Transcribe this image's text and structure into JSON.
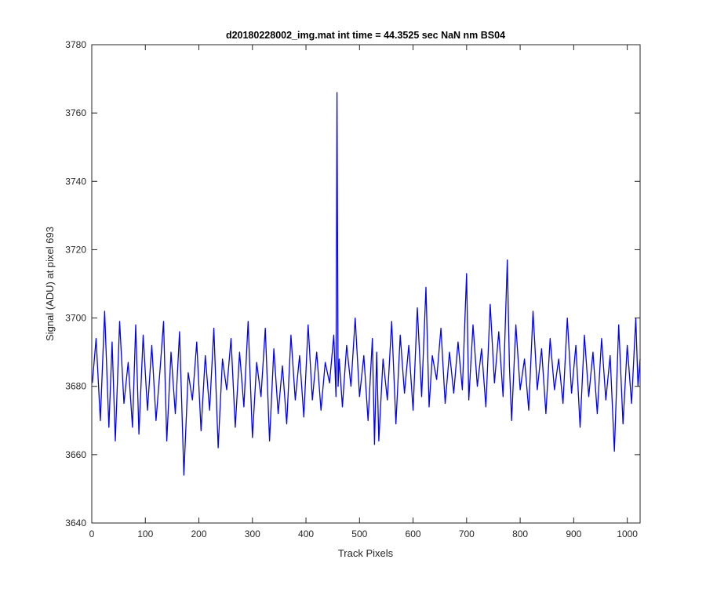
{
  "chart_data": {
    "type": "line",
    "title": "d20180228002_img.mat int time = 44.3525 sec  NaN nm BS04",
    "xlabel": "Track Pixels",
    "ylabel": "Signal (ADU) at pixel 693",
    "xlim": [
      0,
      1024
    ],
    "ylim": [
      3640,
      3780
    ],
    "xticks": [
      0,
      100,
      200,
      300,
      400,
      500,
      600,
      700,
      800,
      900,
      1000
    ],
    "yticks": [
      3640,
      3660,
      3680,
      3700,
      3720,
      3740,
      3760,
      3780
    ],
    "grid": false,
    "line_color": "#0000ff",
    "series": [
      {
        "x": [
          1,
          8,
          16,
          24,
          32,
          38,
          44,
          52,
          60,
          68,
          76,
          82,
          88,
          96,
          104,
          112,
          120,
          128,
          134,
          140,
          148,
          156,
          164,
          172,
          180,
          188,
          196,
          204,
          212,
          220,
          228,
          236,
          244,
          252,
          260,
          268,
          276,
          284,
          292,
          300,
          308,
          316,
          324,
          332,
          340,
          348,
          356,
          364,
          372,
          380,
          388,
          396,
          404,
          412,
          420,
          428,
          436,
          444,
          452,
          456,
          458,
          460,
          462,
          468,
          476,
          484,
          492,
          500,
          508,
          516,
          524,
          528,
          532,
          536,
          544,
          552,
          560,
          568,
          576,
          584,
          592,
          600,
          608,
          616,
          624,
          630,
          636,
          644,
          652,
          660,
          668,
          676,
          684,
          692,
          700,
          704,
          712,
          720,
          728,
          736,
          744,
          752,
          760,
          768,
          776,
          780,
          784,
          792,
          800,
          808,
          816,
          824,
          832,
          840,
          848,
          856,
          864,
          872,
          880,
          888,
          896,
          904,
          912,
          920,
          928,
          936,
          944,
          952,
          960,
          968,
          976,
          984,
          992,
          1000,
          1008,
          1016,
          1020,
          1024
        ],
        "y": [
          3681,
          3694,
          3670,
          3702,
          3668,
          3693,
          3664,
          3699,
          3675,
          3687,
          3668,
          3698,
          3666,
          3695,
          3673,
          3692,
          3670,
          3686,
          3699,
          3664,
          3690,
          3672,
          3696,
          3654,
          3684,
          3676,
          3693,
          3667,
          3689,
          3673,
          3697,
          3662,
          3688,
          3679,
          3694,
          3668,
          3690,
          3674,
          3699,
          3665,
          3687,
          3677,
          3697,
          3664,
          3691,
          3672,
          3686,
          3669,
          3695,
          3676,
          3689,
          3671,
          3698,
          3676,
          3690,
          3673,
          3687,
          3681,
          3695,
          3677,
          3766,
          3680,
          3688,
          3674,
          3692,
          3680,
          3700,
          3677,
          3689,
          3670,
          3694,
          3663,
          3690,
          3664,
          3688,
          3676,
          3699,
          3669,
          3695,
          3678,
          3692,
          3673,
          3703,
          3677,
          3709,
          3674,
          3689,
          3682,
          3697,
          3675,
          3690,
          3678,
          3693,
          3679,
          3713,
          3676,
          3698,
          3680,
          3691,
          3674,
          3704,
          3681,
          3696,
          3677,
          3717,
          3686,
          3670,
          3698,
          3679,
          3688,
          3673,
          3702,
          3679,
          3691,
          3672,
          3694,
          3679,
          3688,
          3675,
          3700,
          3678,
          3692,
          3668,
          3695,
          3677,
          3690,
          3672,
          3694,
          3676,
          3689,
          3661,
          3698,
          3669,
          3692,
          3675,
          3700,
          3680,
          3688
        ]
      }
    ]
  }
}
